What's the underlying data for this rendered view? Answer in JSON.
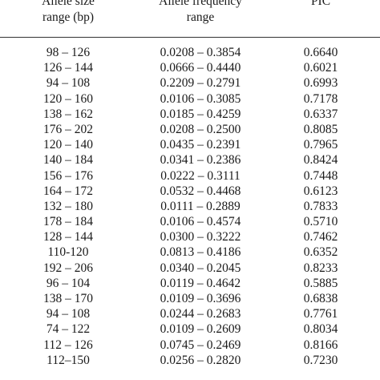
{
  "headers": {
    "size": [
      "Allele size",
      "range (bp)"
    ],
    "freq": [
      "Allele frequency",
      "range"
    ],
    "pic": [
      "PIC"
    ]
  },
  "rows": [
    {
      "size": "98 – 126",
      "freq": "0.0208 – 0.3854",
      "pic": "0.6640"
    },
    {
      "size": "126 – 144",
      "freq": "0.0666 – 0.4440",
      "pic": "0.6021"
    },
    {
      "size": "94 – 108",
      "freq": "0.2209 – 0.2791",
      "pic": "0.6993"
    },
    {
      "size": "120 – 160",
      "freq": "0.0106 – 0.3085",
      "pic": "0.7178"
    },
    {
      "size": "138 – 162",
      "freq": "0.0185 – 0.4259",
      "pic": "0.6337"
    },
    {
      "size": "176 – 202",
      "freq": "0.0208 – 0.2500",
      "pic": "0.8085"
    },
    {
      "size": "120 – 140",
      "freq": "0.0435 – 0.2391",
      "pic": "0.7965"
    },
    {
      "size": "140 – 184",
      "freq": "0.0341 – 0.2386",
      "pic": "0.8424"
    },
    {
      "size": "156 – 176",
      "freq": "0.0222 – 0.3111",
      "pic": "0.7448"
    },
    {
      "size": "164 – 172",
      "freq": "0.0532 – 0.4468",
      "pic": "0.6123"
    },
    {
      "size": "132 – 180",
      "freq": "0.0111 – 0.2889",
      "pic": "0.7833"
    },
    {
      "size": "178 – 184",
      "freq": "0.0106 – 0.4574",
      "pic": "0.5710"
    },
    {
      "size": "128 – 144",
      "freq": "0.0300 – 0.3222",
      "pic": "0.7462"
    },
    {
      "size": "110-120",
      "freq": "0.0813 – 0.4186",
      "pic": "0.6352"
    },
    {
      "size": "192 – 206",
      "freq": "0.0340 – 0.2045",
      "pic": "0.8233"
    },
    {
      "size": "96 – 104",
      "freq": "0.0119 – 0.4642",
      "pic": "0.5885"
    },
    {
      "size": "138 – 170",
      "freq": "0.0109 – 0.3696",
      "pic": "0.6838"
    },
    {
      "size": "94 – 108",
      "freq": "0.0244 – 0.2683",
      "pic": "0.7761"
    },
    {
      "size": "74 – 122",
      "freq": "0.0109 – 0.2609",
      "pic": "0.8034"
    },
    {
      "size": "112 – 126",
      "freq": "0.0745 – 0.2469",
      "pic": "0.8166"
    },
    {
      "size": "112–150",
      "freq": "0.0256 – 0.2820",
      "pic": "0.7230"
    }
  ]
}
